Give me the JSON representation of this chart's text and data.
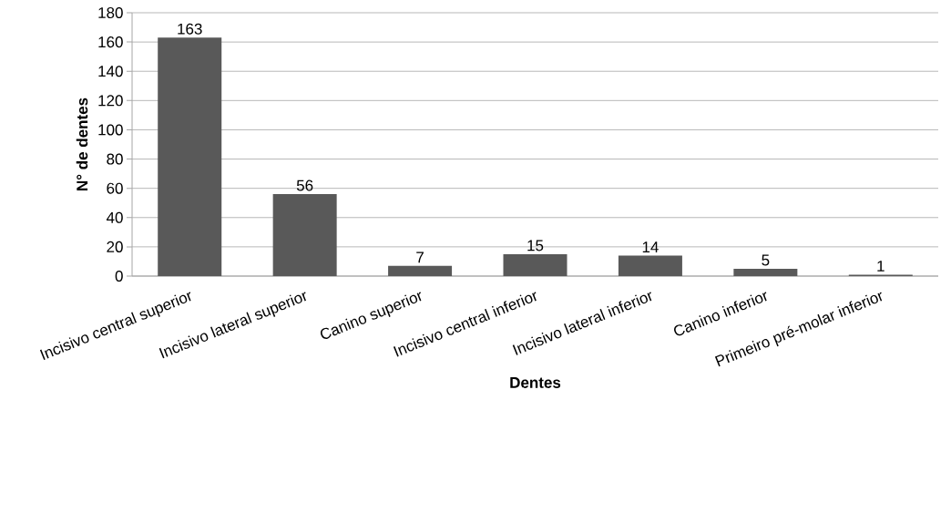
{
  "chart_data": {
    "type": "bar",
    "xlabel": "Dentes",
    "ylabel": "N° de dentes",
    "categories": [
      "Incisivo central superior",
      "Incisivo lateral superior",
      "Canino superior",
      "Incisivo central inferior",
      "Incisivo lateral inferior",
      "Canino inferior",
      "Primeiro pré-molar inferior"
    ],
    "values": [
      163,
      56,
      7,
      15,
      14,
      5,
      1
    ],
    "color": "#595959",
    "ylim": [
      0,
      180
    ],
    "yticks": [
      0,
      20,
      40,
      60,
      80,
      100,
      120,
      140,
      160,
      180
    ],
    "grid": "y",
    "data_labels": true
  }
}
